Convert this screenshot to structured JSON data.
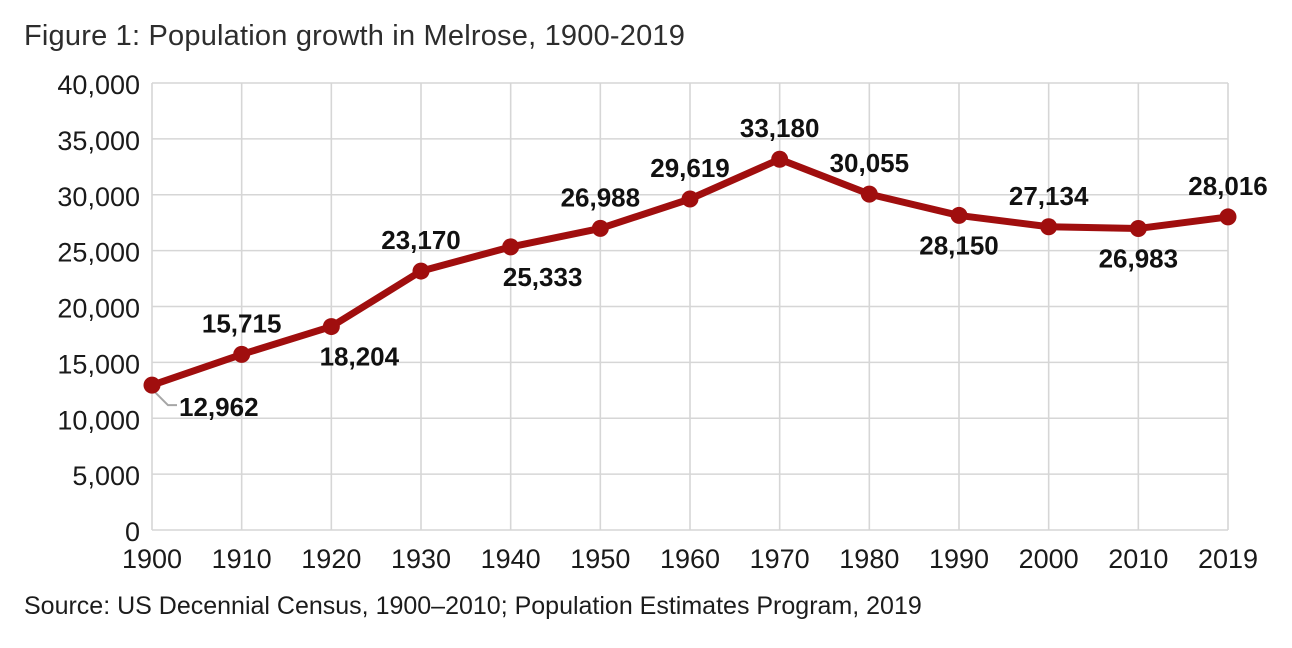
{
  "title": "Figure 1: Population growth in Melrose, 1900-2019",
  "source": "Source: US Decennial Census, 1900–2010; Population Estimates Program, 2019",
  "colors": {
    "line": "#A00E0E",
    "grid": "#D6D6D6",
    "leader": "#A6A6A6",
    "tick_text": "#1a1a1a",
    "label_text": "#111111",
    "title_text": "#2d2d2d"
  },
  "chart_data": {
    "type": "line",
    "title": "Figure 1: Population growth in Melrose, 1900-2019",
    "xlabel": "",
    "ylabel": "",
    "categories": [
      "1900",
      "1910",
      "1920",
      "1930",
      "1940",
      "1950",
      "1960",
      "1970",
      "1980",
      "1990",
      "2000",
      "2010",
      "2019"
    ],
    "values": [
      12962,
      15715,
      18204,
      23170,
      25333,
      26988,
      29619,
      33180,
      30055,
      28150,
      27134,
      26983,
      28016
    ],
    "data_labels": [
      "12,962",
      "15,715",
      "18,204",
      "23,170",
      "25,333",
      "26,988",
      "29,619",
      "33,180",
      "30,055",
      "28,150",
      "27,134",
      "26,983",
      "28,016"
    ],
    "label_placement": [
      "leader",
      "above",
      "below",
      "above",
      "below",
      "above",
      "above",
      "above",
      "above",
      "below",
      "above",
      "below",
      "above"
    ],
    "label_dx": [
      0,
      0,
      28,
      0,
      32,
      0,
      0,
      0,
      0,
      0,
      0,
      0,
      0
    ],
    "ylim": [
      0,
      40000
    ],
    "ytick_step": 5000,
    "ytick_labels": [
      "0",
      "5,000",
      "10,000",
      "15,000",
      "20,000",
      "25,000",
      "30,000",
      "35,000",
      "40,000"
    ],
    "grid": true,
    "legend_position": "none",
    "marker": "circle",
    "line_color": "#A00E0E"
  }
}
